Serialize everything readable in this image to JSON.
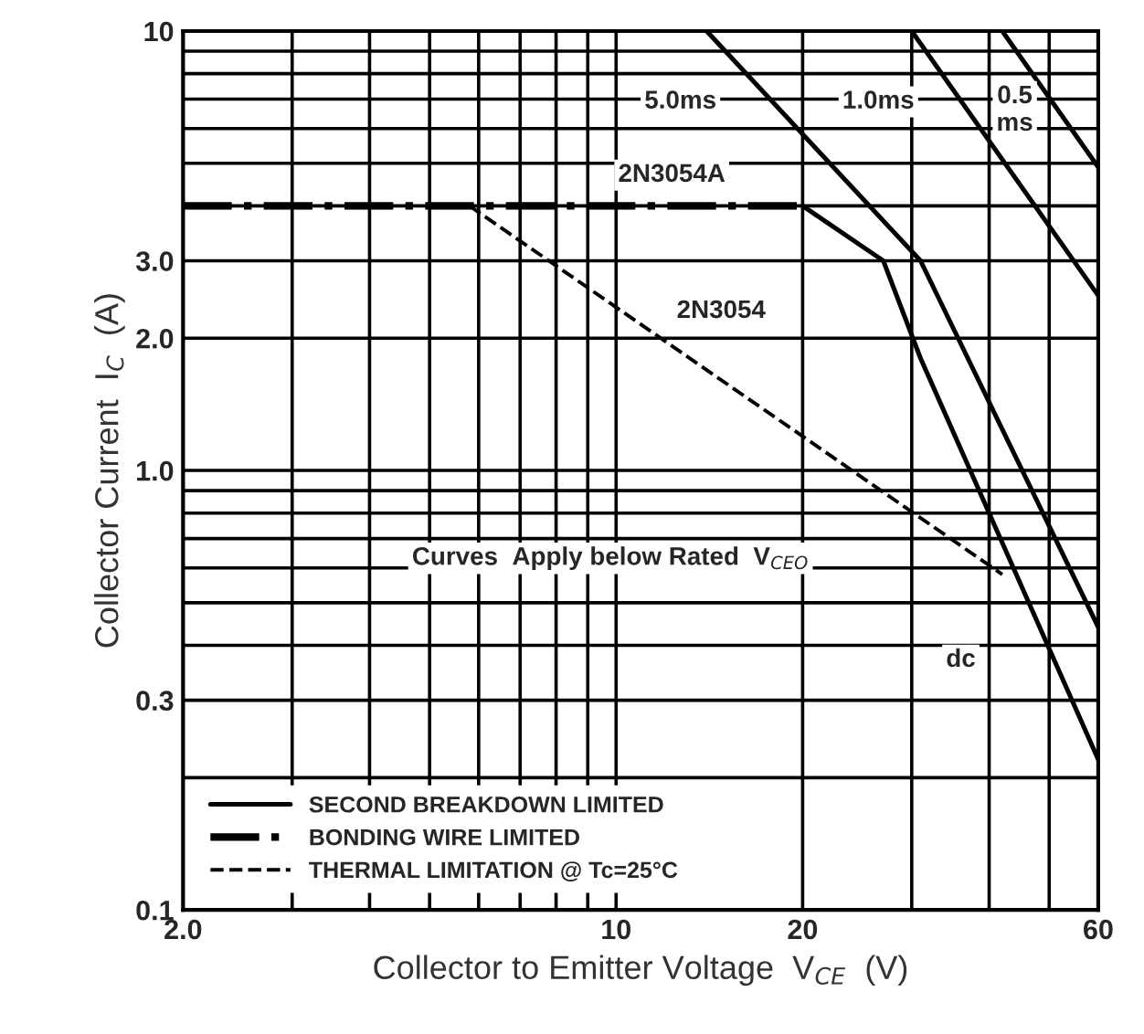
{
  "chart_data": {
    "type": "line",
    "xlabel": "Collector to Emitter Voltage  V$_{CE}$  (V)",
    "ylabel": "Collector Current  I$_{C}$  (A)",
    "log": "xy",
    "xlim": [
      2,
      60
    ],
    "ylim": [
      0.1,
      10
    ],
    "xticks": [
      {
        "value": 2,
        "label": "2.0"
      },
      {
        "value": 3,
        "label": null
      },
      {
        "value": 4,
        "label": null
      },
      {
        "value": 5,
        "label": null
      },
      {
        "value": 6,
        "label": null
      },
      {
        "value": 7,
        "label": null
      },
      {
        "value": 8,
        "label": null
      },
      {
        "value": 9,
        "label": null
      },
      10,
      20,
      {
        "value": 30,
        "label": null
      },
      {
        "value": 40,
        "label": null
      },
      {
        "value": 50,
        "label": null
      },
      60
    ],
    "yticks": [
      0.1,
      {
        "value": 0.2,
        "label": null
      },
      0.3,
      {
        "value": 0.4,
        "label": null
      },
      {
        "value": 0.5,
        "label": null
      },
      {
        "value": 0.6,
        "label": null
      },
      {
        "value": 0.7,
        "label": null
      },
      {
        "value": 0.8,
        "label": null
      },
      {
        "value": 0.9,
        "label": null
      },
      {
        "value": 1,
        "label": "1.0"
      },
      {
        "value": 2,
        "label": "2.0"
      },
      {
        "value": 3,
        "label": "3.0"
      },
      {
        "value": 4,
        "label": null
      },
      {
        "value": 5,
        "label": null
      },
      {
        "value": 6,
        "label": null
      },
      {
        "value": 7,
        "label": null
      },
      {
        "value": 8,
        "label": null
      },
      {
        "value": 9,
        "label": null
      },
      10
    ],
    "grid": true,
    "legend": "bottom left",
    "series": [
      {
        "name": "SECOND BREAKDOWN LIMITED",
        "color": "#000000",
        "line_style": "solid",
        "x": [
          20,
          27,
          31,
          60
        ],
        "values": [
          4.0,
          3.0,
          1.8,
          0.22
        ]
      },
      {
        "name": "BONDING WIRE LIMITED",
        "color": "#000000",
        "line_style": "dashdot",
        "x": [
          2,
          20
        ],
        "values": [
          4.0,
          4.0
        ]
      },
      {
        "name": "THERMAL LIMITATION @ Tc=25°C",
        "color": "#000000",
        "line_style": "dashed",
        "x": [
          5.8,
          42
        ],
        "values": [
          4.0,
          0.58
        ]
      },
      {
        "color": "#000000",
        "line_style": "solid",
        "x": [
          14,
          31,
          60
        ],
        "values": [
          10,
          3.0,
          0.44
        ]
      },
      {
        "color": "#000000",
        "line_style": "solid",
        "x": [
          30,
          60
        ],
        "values": [
          10,
          2.5
        ]
      },
      {
        "color": "#000000",
        "line_style": "solid",
        "x": [
          42,
          60
        ],
        "values": [
          10,
          4.9
        ]
      }
    ],
    "annotations": [
      {
        "text": "5.0ms",
        "x": 12.7,
        "y": 6.9
      },
      {
        "text": "1.0ms",
        "x": 26.5,
        "y": 6.9
      },
      {
        "text": "0.5\nms",
        "x": 44,
        "y": 6.6
      },
      "2N3054A",
      "2N3054",
      {
        "text": "dc",
        "x": 36,
        "y": 0.37
      },
      "Curves  Apply below Rated  V$_{CEO}$"
    ]
  }
}
